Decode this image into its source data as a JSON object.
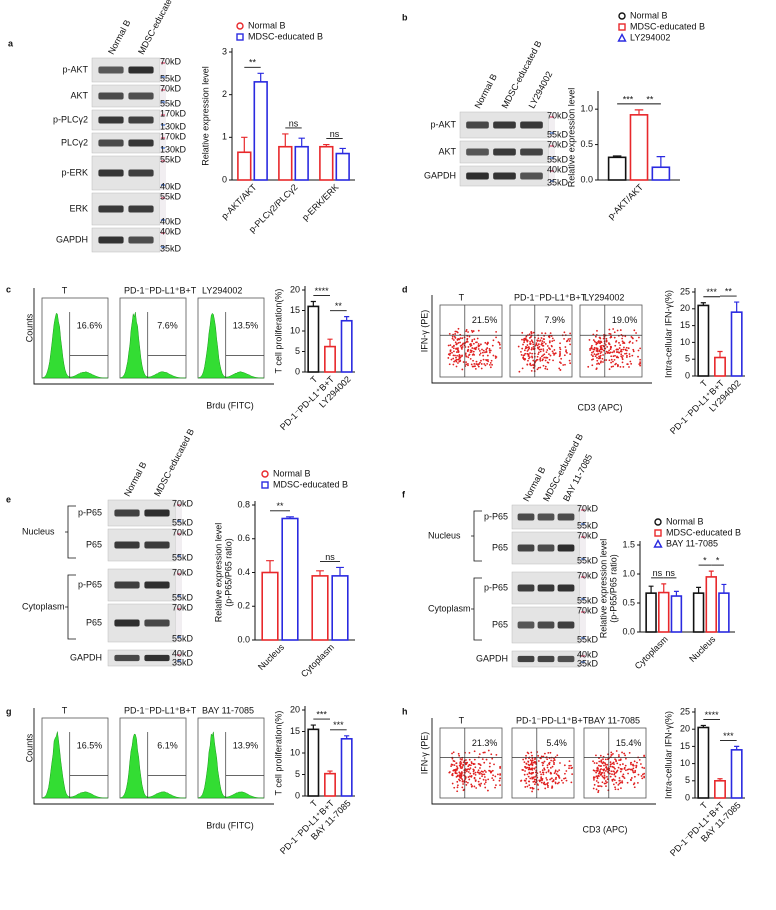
{
  "chart_data": [
    {
      "panel": "a",
      "type": "bar",
      "ylabel": [
        "Relative expression level"
      ],
      "categories": [
        "p-AKT/AKT",
        "p-PLCγ2/PLCγ2",
        "p-ERK/ERK"
      ],
      "series": [
        {
          "name": "Normal B",
          "color": "#e8282b",
          "marker": "circle",
          "values": [
            0.65,
            0.78,
            0.78
          ],
          "errors": [
            0.35,
            0.3,
            0.05
          ]
        },
        {
          "name": "MDSC-educated B",
          "color": "#2a2ae0",
          "marker": "square",
          "values": [
            2.3,
            0.78,
            0.62
          ],
          "errors": [
            0.2,
            0.2,
            0.12
          ]
        }
      ],
      "ylim": [
        0,
        3
      ],
      "yticks": [
        0,
        1,
        2,
        3
      ],
      "annotations": [
        "**",
        "ns",
        "ns"
      ]
    },
    {
      "panel": "b",
      "type": "bar",
      "ylabel": [
        "Relative expression level"
      ],
      "categories": [
        "p-AKT/AKT"
      ],
      "series": [
        {
          "name": "Normal B",
          "color": "#111111",
          "marker": "circle",
          "values": [
            0.32
          ],
          "errors": [
            0.02
          ]
        },
        {
          "name": "MDSC-educated B",
          "color": "#e8282b",
          "marker": "square",
          "values": [
            0.92
          ],
          "errors": [
            0.07
          ]
        },
        {
          "name": "LY294002",
          "color": "#2a2ae0",
          "marker": "triangle",
          "values": [
            0.18
          ],
          "errors": [
            0.15
          ]
        }
      ],
      "ylim": [
        0,
        1.2
      ],
      "yticks": [
        {
          "value": 0,
          "label": "0.0"
        },
        0.5,
        {
          "value": 1,
          "label": "1.0"
        }
      ],
      "annotations": [
        "***",
        "**"
      ]
    },
    {
      "panel": "c",
      "type": "bar",
      "ylabel": [
        "T cell proliferation(%)"
      ],
      "categories": [
        "T",
        "PD-1⁻PD-L1⁺B+T",
        "LY294002"
      ],
      "values": [
        16,
        6.2,
        12.5
      ],
      "errors": [
        1.2,
        1.8,
        1
      ],
      "colors": [
        "#111111",
        "#e8282b",
        "#2a2ae0"
      ],
      "ylim": [
        0,
        20
      ],
      "yticks": [
        0,
        5,
        10,
        15,
        20
      ],
      "annotations": [
        "****",
        "**"
      ]
    },
    {
      "panel": "d",
      "type": "bar",
      "ylabel": [
        "Intra-cellular IFN-γ(%)"
      ],
      "categories": [
        "T",
        "PD-1⁻PD-L1⁺B+T",
        "LY294002"
      ],
      "values": [
        21,
        5.5,
        19
      ],
      "errors": [
        0.8,
        1.8,
        3
      ],
      "colors": [
        "#111111",
        "#e8282b",
        "#2a2ae0"
      ],
      "ylim": [
        0,
        25
      ],
      "yticks": [
        0,
        5,
        10,
        15,
        20,
        25
      ],
      "annotations": [
        "***",
        "**"
      ]
    },
    {
      "panel": "e",
      "type": "bar",
      "ylabel": [
        "Relative expression level",
        "(p-P65/P65 ratio)"
      ],
      "categories": [
        "Nucleus",
        "Cytoplasm"
      ],
      "series": [
        {
          "name": "Normal B",
          "color": "#e8282b",
          "marker": "circle",
          "values": [
            0.4,
            0.38
          ],
          "errors": [
            0.07,
            0.03
          ]
        },
        {
          "name": "MDSC-educated B",
          "color": "#2a2ae0",
          "marker": "square",
          "values": [
            0.72,
            0.38
          ],
          "errors": [
            0.01,
            0.05
          ]
        }
      ],
      "ylim": [
        0,
        0.8
      ],
      "yticks": [
        {
          "value": 0,
          "label": "0.0"
        },
        0.2,
        0.4,
        0.6,
        0.8
      ],
      "annotations": [
        "**",
        "ns"
      ]
    },
    {
      "panel": "f",
      "type": "bar",
      "ylabel": [
        "Relative expression level",
        "(p-P65/P65 ratio)"
      ],
      "categories": [
        "Cytoplasm",
        "Nucleus"
      ],
      "series": [
        {
          "name": "Normal B",
          "color": "#111111",
          "marker": "circle",
          "values": [
            0.67,
            0.67
          ],
          "errors": [
            0.12,
            0.1
          ]
        },
        {
          "name": "MDSC-educated B",
          "color": "#e8282b",
          "marker": "square",
          "values": [
            0.68,
            0.95
          ],
          "errors": [
            0.15,
            0.1
          ]
        },
        {
          "name": "BAY 11-7085",
          "color": "#2a2ae0",
          "marker": "triangle",
          "values": [
            0.62,
            0.67
          ],
          "errors": [
            0.08,
            0.15
          ]
        }
      ],
      "ylim": [
        0,
        1.5
      ],
      "yticks": [
        {
          "value": 0,
          "label": "0.0"
        },
        0.5,
        {
          "value": 1,
          "label": "1.0"
        },
        1.5
      ],
      "annotations": [
        "ns",
        "ns",
        "*",
        "*"
      ]
    },
    {
      "panel": "g",
      "type": "bar",
      "ylabel": [
        "T cell proliferation(%)"
      ],
      "categories": [
        "T",
        "PD-1⁻PD-L1⁺B+T",
        "BAY 11-7085"
      ],
      "values": [
        15.5,
        5.2,
        13.3
      ],
      "errors": [
        1,
        0.6,
        0.7
      ],
      "colors": [
        "#111111",
        "#e8282b",
        "#2a2ae0"
      ],
      "ylim": [
        0,
        20
      ],
      "yticks": [
        0,
        5,
        10,
        15,
        20
      ],
      "annotations": [
        "***",
        "***"
      ]
    },
    {
      "panel": "h",
      "type": "bar",
      "ylabel": [
        "Intra-cellular IFN-γ(%)"
      ],
      "categories": [
        "T",
        "PD-1⁻PD-L1⁺B+T",
        "BAY 11-7085"
      ],
      "values": [
        20.5,
        5,
        14
      ],
      "errors": [
        0.6,
        0.6,
        1
      ],
      "colors": [
        "#111111",
        "#e8282b",
        "#2a2ae0"
      ],
      "ylim": [
        0,
        25
      ],
      "yticks": [
        0,
        5,
        10,
        15,
        20,
        25
      ],
      "annotations": [
        "****",
        "***"
      ]
    }
  ],
  "blots": [
    {
      "lanes": [
        "Normal B",
        "MDSC-educated B"
      ],
      "sections": [
        {
          "rows": [
            {
              "label": "p-AKT",
              "markers": [
                "70kD",
                "55kD"
              ]
            },
            {
              "label": "AKT",
              "markers": [
                "70kD",
                "55kD"
              ]
            },
            {
              "label": "p-PLCγ2",
              "markers": [
                "170kD",
                "130kD"
              ]
            },
            {
              "label": "PLCγ2",
              "markers": [
                "170kD",
                "130kD"
              ]
            },
            {
              "label": "p-ERK",
              "markers": [
                "55kD",
                "40kD"
              ]
            },
            {
              "label": "ERK",
              "markers": [
                "55kD",
                "40kD"
              ]
            },
            {
              "label": "GAPDH",
              "markers": [
                "40kD",
                "35kD"
              ]
            }
          ]
        }
      ]
    },
    {
      "lanes": [
        "Normal B",
        "MDSC-educated B",
        "LY294002"
      ],
      "sections": [
        {
          "rows": [
            {
              "label": "p-AKT",
              "markers": [
                "70kD",
                "55kD"
              ]
            },
            {
              "label": "AKT",
              "markers": [
                "70kD",
                "55kD"
              ]
            },
            {
              "label": "GAPDH",
              "markers": [
                "40kD",
                "35kD"
              ]
            }
          ]
        }
      ]
    },
    {
      "lanes": [
        "Normal B",
        "MDSC-educated  B"
      ],
      "sections": [
        {
          "label": "Nucleus",
          "rows": [
            {
              "label": "p-P65",
              "markers": [
                "70kD",
                "55kD"
              ]
            },
            {
              "label": "P65",
              "markers": [
                "70kD",
                "55kD"
              ]
            }
          ]
        },
        {
          "label": "Cytoplasm",
          "rows": [
            {
              "label": "p-P65",
              "markers": [
                "70kD",
                "55kD"
              ]
            },
            {
              "label": "P65",
              "markers": [
                "70kD",
                "55kD"
              ]
            }
          ]
        },
        {
          "rows": [
            {
              "label": "GAPDH",
              "markers": [
                "40kD",
                "35kD"
              ]
            }
          ]
        }
      ]
    },
    {
      "lanes": [
        "Normal B",
        "MDSC-educated B",
        "BAY 11-7085"
      ],
      "sections": [
        {
          "label": "Nucleus",
          "rows": [
            {
              "label": "p-P65",
              "markers": [
                "70kD",
                "55kD"
              ]
            },
            {
              "label": "P65",
              "markers": [
                "70kD",
                "55kD"
              ]
            }
          ]
        },
        {
          "label": "Cytoplasm",
          "rows": [
            {
              "label": "p-P65",
              "markers": [
                "70kD",
                "55kD"
              ]
            },
            {
              "label": "P65",
              "markers": [
                "70kD",
                "55kD"
              ]
            }
          ]
        },
        {
          "rows": [
            {
              "label": "GAPDH",
              "markers": [
                "40kD",
                "35kD"
              ]
            }
          ]
        }
      ]
    }
  ],
  "flows": [
    {
      "kind": "histogram",
      "ylabel": "Counts",
      "xlabel": "Brdu (FITC)",
      "plots": [
        {
          "title": "T",
          "label": "16.6%"
        },
        {
          "title": "PD-1⁻PD-L1⁺B+T",
          "label": "7.6%"
        },
        {
          "title": "LY294002",
          "label": "13.5%"
        }
      ]
    },
    {
      "kind": "dots",
      "ylabel": "IFN-γ (PE)",
      "xlabel": "CD3 (APC)",
      "plots": [
        {
          "title": "T",
          "label": "21.5%"
        },
        {
          "title": "PD-1⁻PD-L1⁺B+T",
          "label": "7.9%"
        },
        {
          "title": "LY294002",
          "label": "19.0%"
        }
      ]
    },
    {
      "kind": "histogram",
      "ylabel": "Counts",
      "xlabel": "Brdu (FITC)",
      "plots": [
        {
          "title": "T",
          "label": "16.5%"
        },
        {
          "title": "PD-1⁻PD-L1⁺B+T",
          "label": "6.1%"
        },
        {
          "title": "BAY 11-7085",
          "label": "13.9%"
        }
      ]
    },
    {
      "kind": "dots",
      "ylabel": "IFN-γ (PE)",
      "xlabel": "CD3 (APC)",
      "plots": [
        {
          "title": "T",
          "label": "21.3%"
        },
        {
          "title": "PD-1⁻PD-L1⁺B+T",
          "label": "5.4%"
        },
        {
          "title": "BAY 11-7085",
          "label": "15.4%"
        }
      ]
    }
  ]
}
